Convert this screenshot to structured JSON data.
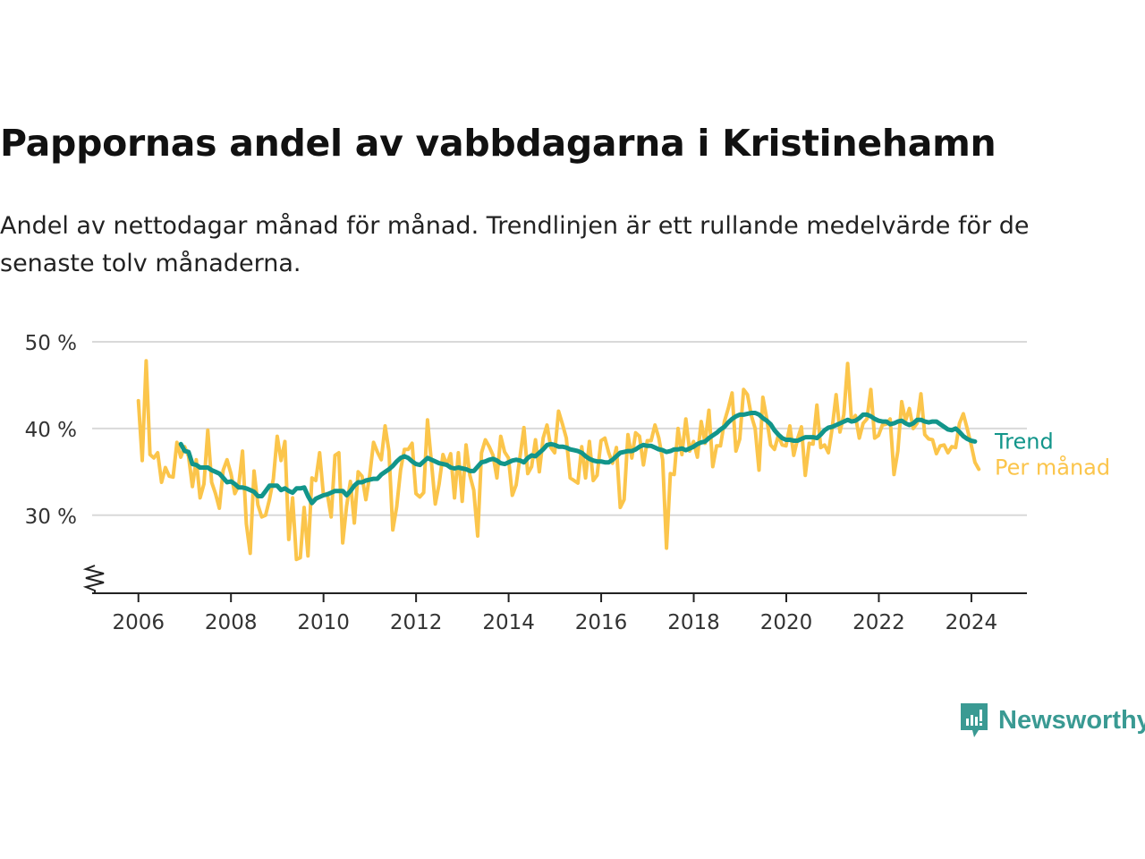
{
  "title": "Pappornas andel av vabbdagarna i Kristinehamn",
  "subtitle": "Andel av nettodagar månad för månad. Trendlinjen är ett rullande medelvärde för de senaste tolv månaderna.",
  "brand": {
    "name": "Newsworthy",
    "color": "#3a9a93"
  },
  "colors": {
    "trend": "#12958a",
    "monthly": "#fbc54b",
    "grid": "#d9d9d9",
    "axis": "#222222"
  },
  "chart_data": {
    "type": "line",
    "title": "Pappornas andel av vabbdagarna i Kristinehamn",
    "xlabel": "",
    "ylabel": "",
    "xlim": [
      2005.0,
      2025.2
    ],
    "ylim": [
      21,
      50
    ],
    "y_ticks": [
      30,
      40,
      50
    ],
    "y_tick_labels": [
      "30 %",
      "40 %",
      "50 %"
    ],
    "x_ticks": [
      2006,
      2008,
      2010,
      2012,
      2014,
      2016,
      2018,
      2020,
      2022,
      2024
    ],
    "x_tick_labels": [
      "2006",
      "2008",
      "2010",
      "2012",
      "2014",
      "2016",
      "2018",
      "2020",
      "2022",
      "2024"
    ],
    "grid": true,
    "legend": "end-of-line labels (right)",
    "series": [
      {
        "name": "Per månad",
        "color": "#fbc54b",
        "start": 2006.0,
        "step": 0.0833,
        "values": [
          43.2,
          36.3,
          47.8,
          37.0,
          36.6,
          37.2,
          33.8,
          35.5,
          34.5,
          34.4,
          38.4,
          36.7,
          37.9,
          36.8,
          33.3,
          36.4,
          32.0,
          33.6,
          39.8,
          33.8,
          32.5,
          30.8,
          35.2,
          36.4,
          34.8,
          32.5,
          33.4,
          37.4,
          29.0,
          25.6,
          35.1,
          31.2,
          29.8,
          30.0,
          31.8,
          34.2,
          39.1,
          36.3,
          38.5,
          27.2,
          32.0,
          24.9,
          25.1,
          30.9,
          25.3,
          34.3,
          34.0,
          37.2,
          32.3,
          32.5,
          29.8,
          36.9,
          37.2,
          26.8,
          31.0,
          33.9,
          29.1,
          35.0,
          34.5,
          31.8,
          34.6,
          38.4,
          37.3,
          36.4,
          40.3,
          37.4,
          28.3,
          31.0,
          35.2,
          37.6,
          37.6,
          38.3,
          32.5,
          32.1,
          32.6,
          41.0,
          36.2,
          31.3,
          33.6,
          37.0,
          35.8,
          37.1,
          32.0,
          37.2,
          31.6,
          38.1,
          34.6,
          32.9,
          27.6,
          37.2,
          38.7,
          37.9,
          36.9,
          34.3,
          39.1,
          37.3,
          36.6,
          32.3,
          33.5,
          36.8,
          40.1,
          34.8,
          35.6,
          38.7,
          35.0,
          38.9,
          40.4,
          37.8,
          37.2,
          42.0,
          40.5,
          38.9,
          34.3,
          34.0,
          33.7,
          37.9,
          34.3,
          38.5,
          34.0,
          34.6,
          38.6,
          38.9,
          37.2,
          36.0,
          37.8,
          30.9,
          31.8,
          39.3,
          36.6,
          39.5,
          39.1,
          35.8,
          38.6,
          38.6,
          40.4,
          38.9,
          36.4,
          26.2,
          34.8,
          34.7,
          40.0,
          37.0,
          41.1,
          37.4,
          38.5,
          36.7,
          40.8,
          38.3,
          42.1,
          35.6,
          38.0,
          38.0,
          40.8,
          42.3,
          44.1,
          37.4,
          38.8,
          44.5,
          43.9,
          41.5,
          40.0,
          35.2,
          43.6,
          41.1,
          38.1,
          37.6,
          39.2,
          38.1,
          38.0,
          40.3,
          36.9,
          38.8,
          40.2,
          34.6,
          38.3,
          38.2,
          42.7,
          37.8,
          38.1,
          37.2,
          40.1,
          43.9,
          39.6,
          41.6,
          47.5,
          40.8,
          41.5,
          38.9,
          40.6,
          41.1,
          44.5,
          38.9,
          39.2,
          40.4,
          40.5,
          41.1,
          34.7,
          37.4,
          43.1,
          40.9,
          42.3,
          40.0,
          40.6,
          44.0,
          39.3,
          38.8,
          38.7,
          37.1,
          38.0,
          38.1,
          37.2,
          37.9,
          37.8,
          40.6,
          41.7,
          40.0,
          38.2,
          36.1,
          35.3
        ]
      },
      {
        "name": "Trend",
        "color": "#12958a",
        "start": 2006.917,
        "step": 0.0833,
        "values": [
          38.2,
          37.4,
          37.3,
          35.9,
          35.8,
          35.5,
          35.5,
          35.5,
          35.2,
          35.0,
          34.8,
          34.3,
          33.8,
          33.9,
          33.6,
          33.2,
          33.2,
          33.1,
          32.9,
          32.7,
          32.2,
          32.2,
          32.8,
          33.4,
          33.4,
          33.4,
          32.9,
          33.1,
          32.8,
          32.6,
          33.1,
          33.1,
          33.2,
          32.2,
          31.4,
          31.9,
          32.1,
          32.3,
          32.4,
          32.6,
          32.8,
          32.8,
          32.8,
          32.3,
          32.8,
          33.4,
          33.8,
          33.8,
          34.0,
          34.1,
          34.2,
          34.2,
          34.7,
          35.0,
          35.3,
          35.7,
          36.2,
          36.6,
          36.8,
          36.6,
          36.2,
          35.9,
          35.8,
          36.2,
          36.6,
          36.4,
          36.2,
          36.0,
          35.9,
          35.8,
          35.5,
          35.4,
          35.5,
          35.4,
          35.3,
          35.1,
          35.1,
          35.6,
          36.1,
          36.2,
          36.4,
          36.5,
          36.3,
          36.0,
          35.9,
          36.1,
          36.3,
          36.4,
          36.3,
          36.1,
          36.6,
          36.9,
          36.8,
          37.2,
          37.6,
          38.1,
          38.2,
          38.1,
          37.9,
          37.9,
          37.8,
          37.6,
          37.5,
          37.4,
          37.2,
          36.8,
          36.5,
          36.3,
          36.2,
          36.2,
          36.1,
          36.1,
          36.4,
          36.8,
          37.2,
          37.3,
          37.4,
          37.4,
          37.6,
          37.9,
          38.1,
          38.0,
          38.0,
          37.8,
          37.6,
          37.5,
          37.3,
          37.4,
          37.6,
          37.6,
          37.7,
          37.5,
          37.7,
          37.9,
          38.2,
          38.4,
          38.5,
          38.9,
          39.2,
          39.5,
          39.9,
          40.2,
          40.7,
          41.1,
          41.4,
          41.6,
          41.6,
          41.7,
          41.8,
          41.8,
          41.6,
          41.2,
          40.9,
          40.5,
          39.8,
          39.3,
          38.9,
          38.7,
          38.7,
          38.6,
          38.6,
          38.8,
          39.0,
          39.0,
          39.0,
          38.9,
          39.3,
          39.8,
          40.1,
          40.2,
          40.4,
          40.6,
          40.8,
          41.0,
          40.8,
          40.9,
          41.2,
          41.6,
          41.6,
          41.4,
          41.1,
          40.9,
          40.8,
          40.8,
          40.5,
          40.6,
          40.8,
          40.9,
          40.6,
          40.4,
          40.6,
          41.0,
          41.0,
          40.8,
          40.7,
          40.8,
          40.8,
          40.5,
          40.2,
          39.9,
          39.8,
          40.0,
          39.6,
          39.1,
          38.8,
          38.6,
          38.5
        ]
      }
    ]
  }
}
